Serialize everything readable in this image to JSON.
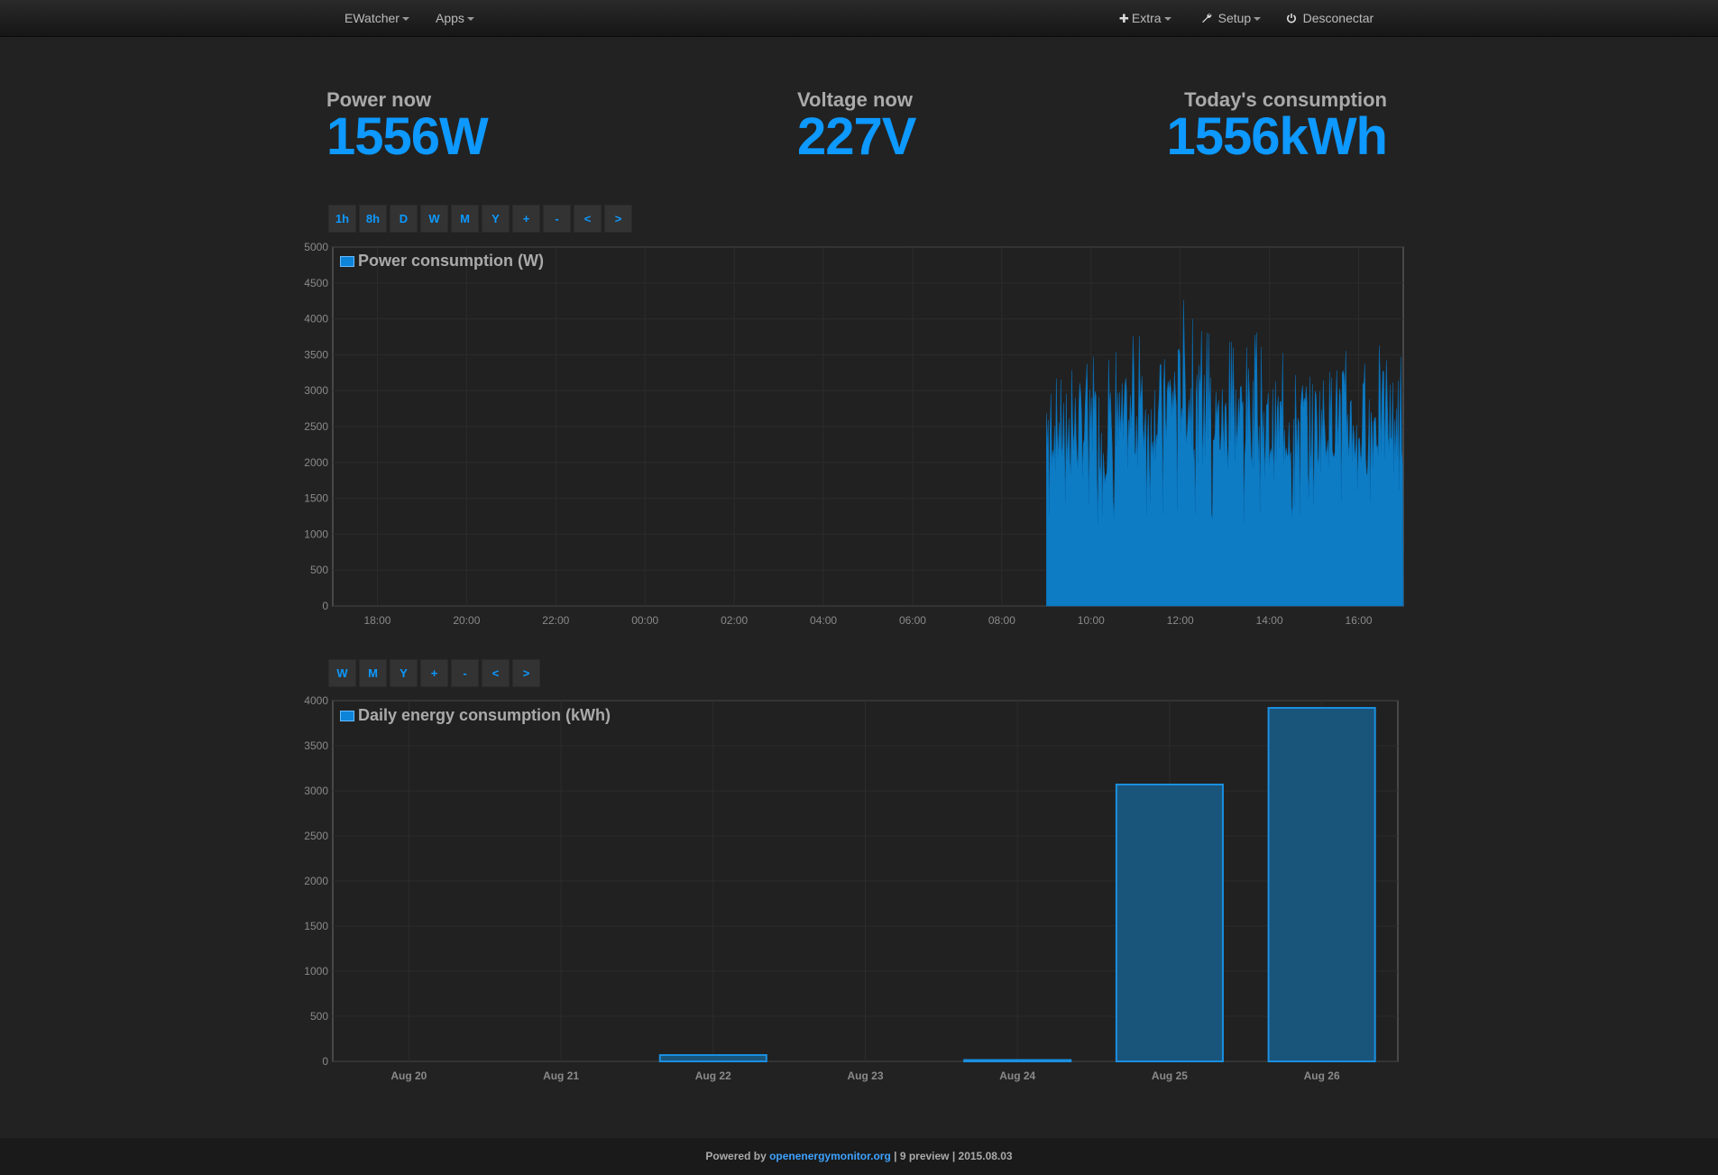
{
  "nav": {
    "ewatcher": "EWatcher",
    "apps": "Apps",
    "extra": "Extra",
    "setup": "Setup",
    "logout": "Desconectar",
    "extra_icon": "plus-icon",
    "setup_icon": "wrench-icon",
    "logout_icon": "power-icon"
  },
  "stats": {
    "power_label": "Power now",
    "power_value": "1556W",
    "voltage_label": "Voltage now",
    "voltage_value": "227V",
    "consumption_label": "Today's consumption",
    "consumption_value": "1556kWh"
  },
  "power_buttons": [
    "1h",
    "8h",
    "D",
    "W",
    "M",
    "Y",
    "+",
    "-",
    "<",
    ">"
  ],
  "energy_buttons": [
    "W",
    "M",
    "Y",
    "+",
    "-",
    "<",
    ">"
  ],
  "colors": {
    "accent": "#0d99ff",
    "bar": "#0d7cc4",
    "background": "#222222"
  },
  "footer": {
    "prefix": "Powered by",
    "link": "openenergymonitor.org",
    "suffix": "| 9 preview | 2015.08.03"
  },
  "chart_data": [
    {
      "type": "area",
      "title": "Power consumption (W)",
      "xlabel": "",
      "ylabel": "",
      "ylim": [
        0,
        5000
      ],
      "yticks": [
        0,
        500,
        1000,
        1500,
        2000,
        2500,
        3000,
        3500,
        4000,
        4500,
        5000
      ],
      "xlim": [
        "17:00",
        "17:00"
      ],
      "xticks": [
        "18:00",
        "20:00",
        "22:00",
        "00:00",
        "02:00",
        "04:00",
        "06:00",
        "08:00",
        "10:00",
        "12:00",
        "14:00",
        "16:00"
      ],
      "data_start": "09:00",
      "series": [
        {
          "x": [
            "09:00",
            "09:30",
            "10:00",
            "10:30",
            "11:00",
            "11:30",
            "12:00",
            "12:30",
            "13:00",
            "13:30",
            "14:00",
            "14:30",
            "15:00",
            "15:30",
            "16:00",
            "16:30",
            "17:00"
          ],
          "values": [
            2600,
            2400,
            2500,
            2350,
            2600,
            2700,
            3000,
            2600,
            2500,
            2700,
            2400,
            2600,
            2500,
            2700,
            2450,
            2600,
            2500
          ],
          "max_values": [
            3300,
            3400,
            3500,
            3700,
            3900,
            3800,
            4450,
            3900,
            3800,
            3900,
            3700,
            3800,
            3600,
            3700,
            3600,
            3700,
            3650
          ],
          "min_values": [
            950,
            1200,
            1100,
            1200,
            1250,
            1200,
            1300,
            1150,
            1200,
            1000,
            1250,
            1200,
            1350,
            1200,
            1400,
            1300,
            1450
          ]
        }
      ],
      "grid": true,
      "legend": "top-left"
    },
    {
      "type": "bar",
      "title": "Daily energy consumption (kWh)",
      "xlabel": "",
      "ylabel": "",
      "categories": [
        "Aug 20",
        "Aug 21",
        "Aug 22",
        "Aug 23",
        "Aug 24",
        "Aug 25",
        "Aug 26"
      ],
      "values": [
        0,
        0,
        70,
        0,
        15,
        3070,
        3920
      ],
      "ylim": [
        0,
        4000
      ],
      "yticks": [
        0,
        500,
        1000,
        1500,
        2000,
        2500,
        3000,
        3500,
        4000
      ],
      "grid": true,
      "legend": "top-left"
    }
  ]
}
